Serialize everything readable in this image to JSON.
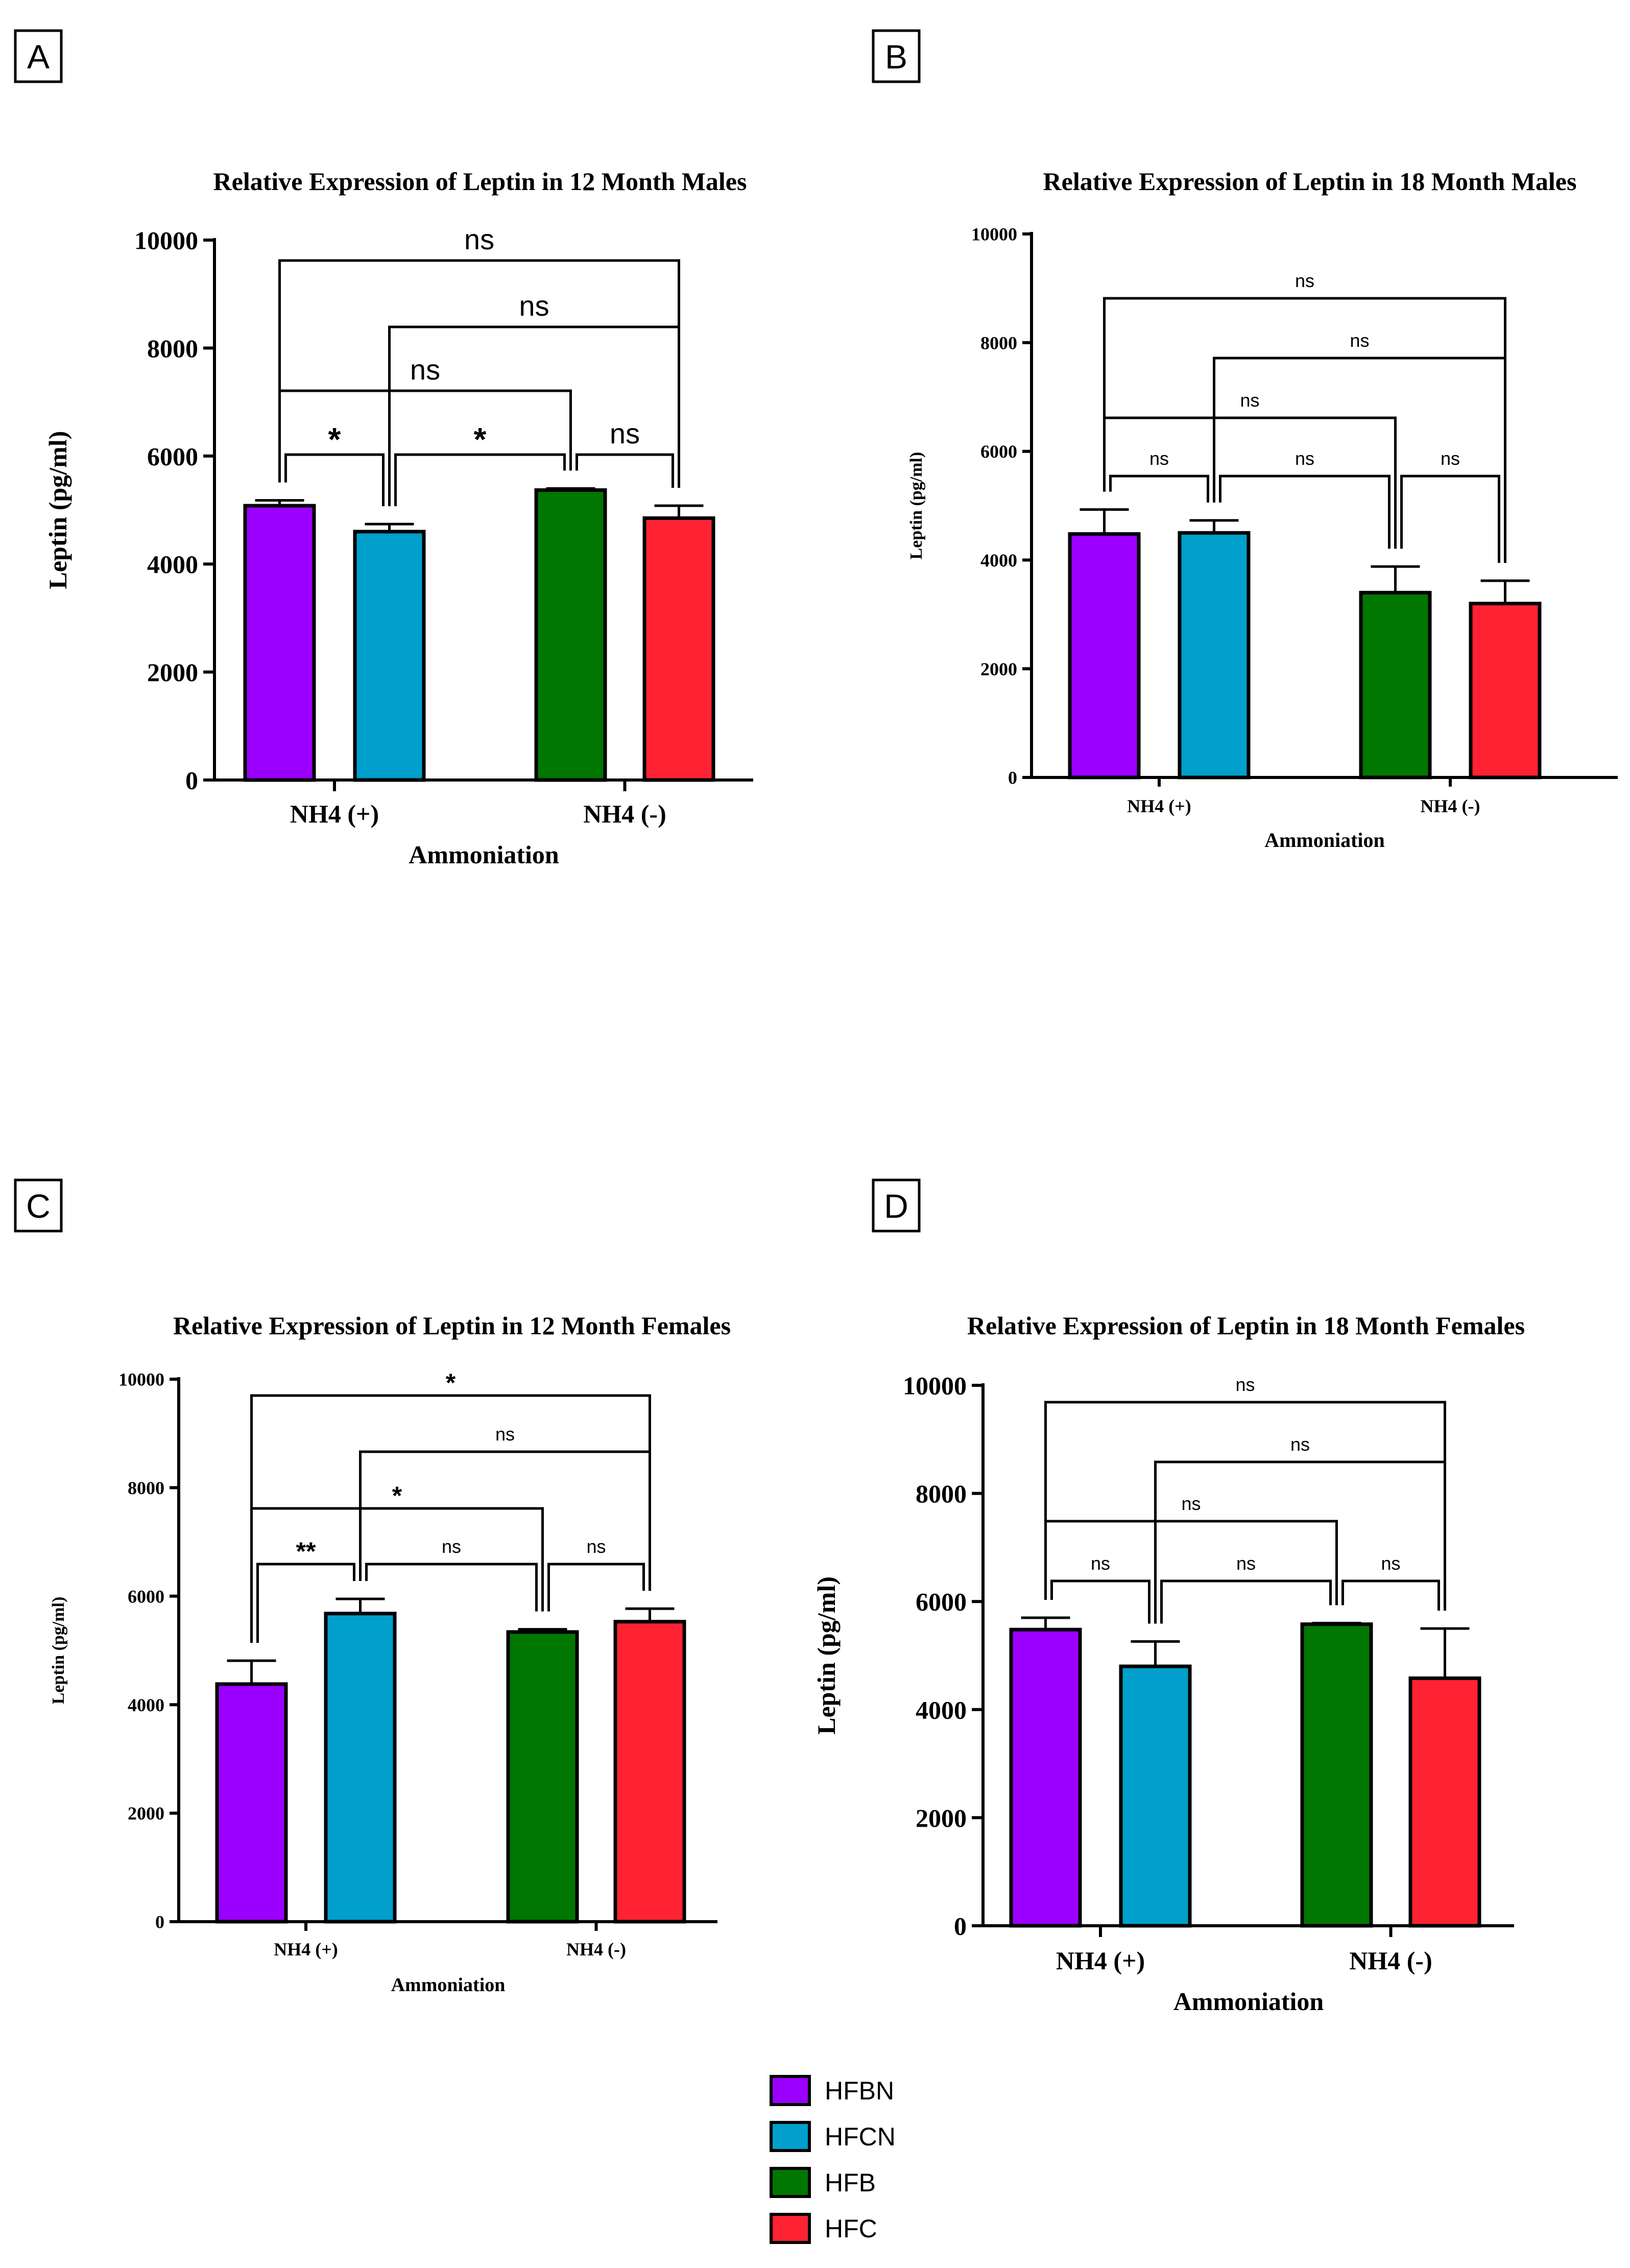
{
  "legend": [
    {
      "name": "HFBN",
      "color": "#9B00FF"
    },
    {
      "name": "HFCN",
      "color": "#009FCC"
    },
    {
      "name": "HFB",
      "color": "#007700"
    },
    {
      "name": "HFC",
      "color": "#FF2233"
    }
  ],
  "chart_data": [
    {
      "panel": "A",
      "type": "bar",
      "title": "Relative Expression of Leptin in 12 Month Males",
      "xlabel": "Ammoniation",
      "ylabel": "Leptin (pg/ml)",
      "ylim": [
        0,
        10000
      ],
      "yticks": [
        0,
        2000,
        4000,
        6000,
        8000,
        10000
      ],
      "categories": [
        "NH4 (+)",
        "NH4 (-)"
      ],
      "bars": [
        {
          "series": "HFBN",
          "group": 0,
          "value": 5080,
          "error": 100
        },
        {
          "series": "HFCN",
          "group": 0,
          "value": 4600,
          "error": 140
        },
        {
          "series": "HFB",
          "group": 1,
          "value": 5370,
          "error": 30
        },
        {
          "series": "HFC",
          "group": 1,
          "value": 4850,
          "error": 230
        }
      ],
      "comparisons": [
        {
          "a": 0,
          "b": 1,
          "level": 1,
          "label": "*"
        },
        {
          "a": 1,
          "b": 2,
          "level": 1,
          "label": "*"
        },
        {
          "a": 2,
          "b": 3,
          "level": 1,
          "label": "ns"
        },
        {
          "a": 0,
          "b": 2,
          "level": 2,
          "label": "ns"
        },
        {
          "a": 1,
          "b": 3,
          "level": 3,
          "label": "ns"
        },
        {
          "a": 0,
          "b": 3,
          "level": 4,
          "label": "ns"
        }
      ]
    },
    {
      "panel": "B",
      "type": "bar",
      "title": "Relative Expression of Leptin in 18 Month Males",
      "xlabel": "Ammoniation",
      "ylabel": "Leptin (pg/ml)",
      "ylim": [
        0,
        10000
      ],
      "yticks": [
        0,
        2000,
        4000,
        6000,
        8000,
        10000
      ],
      "categories": [
        "NH4 (+)",
        "NH4 (-)"
      ],
      "bars": [
        {
          "series": "HFBN",
          "group": 0,
          "value": 4480,
          "error": 450
        },
        {
          "series": "HFCN",
          "group": 0,
          "value": 4500,
          "error": 230
        },
        {
          "series": "HFB",
          "group": 1,
          "value": 3400,
          "error": 480
        },
        {
          "series": "HFC",
          "group": 1,
          "value": 3200,
          "error": 420
        }
      ],
      "comparisons": [
        {
          "a": 0,
          "b": 1,
          "level": 1,
          "label": "ns"
        },
        {
          "a": 1,
          "b": 2,
          "level": 1,
          "label": "ns"
        },
        {
          "a": 2,
          "b": 3,
          "level": 1,
          "label": "ns"
        },
        {
          "a": 0,
          "b": 2,
          "level": 2,
          "label": "ns"
        },
        {
          "a": 1,
          "b": 3,
          "level": 3,
          "label": "ns"
        },
        {
          "a": 0,
          "b": 3,
          "level": 4,
          "label": "ns"
        }
      ]
    },
    {
      "panel": "C",
      "type": "bar",
      "title": "Relative Expression of Leptin in 12 Month Females",
      "xlabel": "Ammoniation",
      "ylabel": "Leptin (pg/ml)",
      "ylim": [
        0,
        10000
      ],
      "yticks": [
        0,
        2000,
        4000,
        6000,
        8000,
        10000
      ],
      "categories": [
        "NH4 (+)",
        "NH4 (-)"
      ],
      "bars": [
        {
          "series": "HFBN",
          "group": 0,
          "value": 4380,
          "error": 430
        },
        {
          "series": "HFCN",
          "group": 0,
          "value": 5680,
          "error": 270
        },
        {
          "series": "HFB",
          "group": 1,
          "value": 5340,
          "error": 50
        },
        {
          "series": "HFC",
          "group": 1,
          "value": 5530,
          "error": 240
        }
      ],
      "comparisons": [
        {
          "a": 0,
          "b": 1,
          "level": 1,
          "label": "**"
        },
        {
          "a": 1,
          "b": 2,
          "level": 1,
          "label": "ns"
        },
        {
          "a": 2,
          "b": 3,
          "level": 1,
          "label": "ns"
        },
        {
          "a": 0,
          "b": 2,
          "level": 2,
          "label": "*"
        },
        {
          "a": 1,
          "b": 3,
          "level": 3,
          "label": "ns"
        },
        {
          "a": 0,
          "b": 3,
          "level": 4,
          "label": "*"
        }
      ]
    },
    {
      "panel": "D",
      "type": "bar",
      "title": "Relative Expression of Leptin in 18 Month Females",
      "xlabel": "Ammoniation",
      "ylabel": "Leptin (pg/ml)",
      "ylim": [
        0,
        10000
      ],
      "yticks": [
        0,
        2000,
        4000,
        6000,
        8000,
        10000
      ],
      "categories": [
        "NH4 (+)",
        "NH4 (-)"
      ],
      "bars": [
        {
          "series": "HFBN",
          "group": 0,
          "value": 5480,
          "error": 220
        },
        {
          "series": "HFCN",
          "group": 0,
          "value": 4800,
          "error": 460
        },
        {
          "series": "HFB",
          "group": 1,
          "value": 5580,
          "error": 20
        },
        {
          "series": "HFC",
          "group": 1,
          "value": 4580,
          "error": 920
        }
      ],
      "comparisons": [
        {
          "a": 0,
          "b": 1,
          "level": 1,
          "label": "ns"
        },
        {
          "a": 1,
          "b": 2,
          "level": 1,
          "label": "ns"
        },
        {
          "a": 2,
          "b": 3,
          "level": 1,
          "label": "ns"
        },
        {
          "a": 0,
          "b": 2,
          "level": 2,
          "label": "ns"
        },
        {
          "a": 1,
          "b": 3,
          "level": 3,
          "label": "ns"
        },
        {
          "a": 0,
          "b": 3,
          "level": 4,
          "label": "ns"
        }
      ]
    }
  ]
}
